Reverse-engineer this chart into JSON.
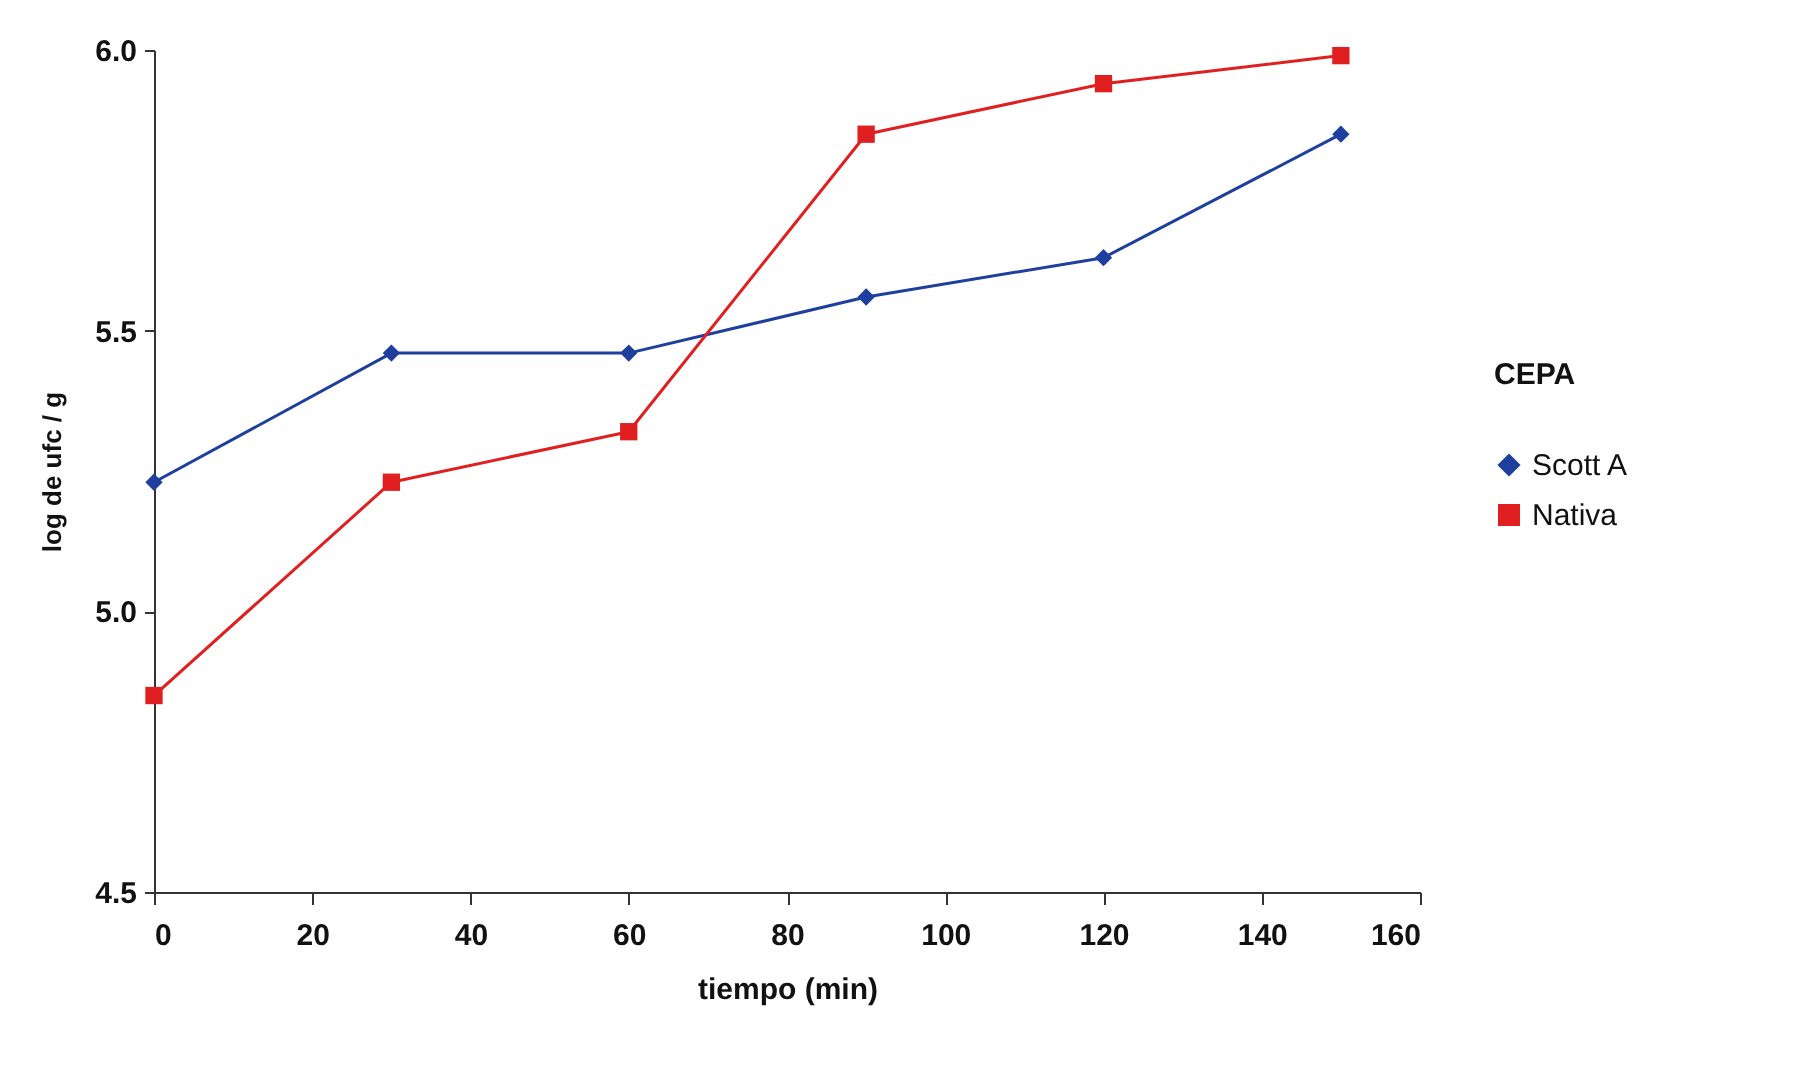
{
  "chart_data": {
    "type": "line",
    "xlabel": "tiempo  (min)",
    "ylabel": "log de ufc / g",
    "legend_title": "CEPA",
    "x": [
      0,
      30,
      60,
      90,
      120,
      150
    ],
    "series": [
      {
        "name": "Scott A",
        "color": "#1f3f9f",
        "marker": "diamond",
        "values": [
          5.23,
          5.46,
          5.46,
          5.56,
          5.63,
          5.85
        ]
      },
      {
        "name": "Nativa",
        "color": "#e02020",
        "marker": "square",
        "values": [
          4.85,
          5.23,
          5.32,
          5.85,
          5.94,
          5.99
        ]
      }
    ],
    "xlim": [
      0,
      160
    ],
    "xticks": [
      0,
      20,
      40,
      60,
      80,
      100,
      120,
      140,
      160
    ],
    "ylim": [
      4.5,
      6.0
    ],
    "yticks": [
      4.5,
      {
        "value": 5,
        "label": "5.0"
      },
      5.5,
      {
        "value": 6,
        "label": "6.0"
      }
    ],
    "legend": "right",
    "line_style": "solid"
  }
}
